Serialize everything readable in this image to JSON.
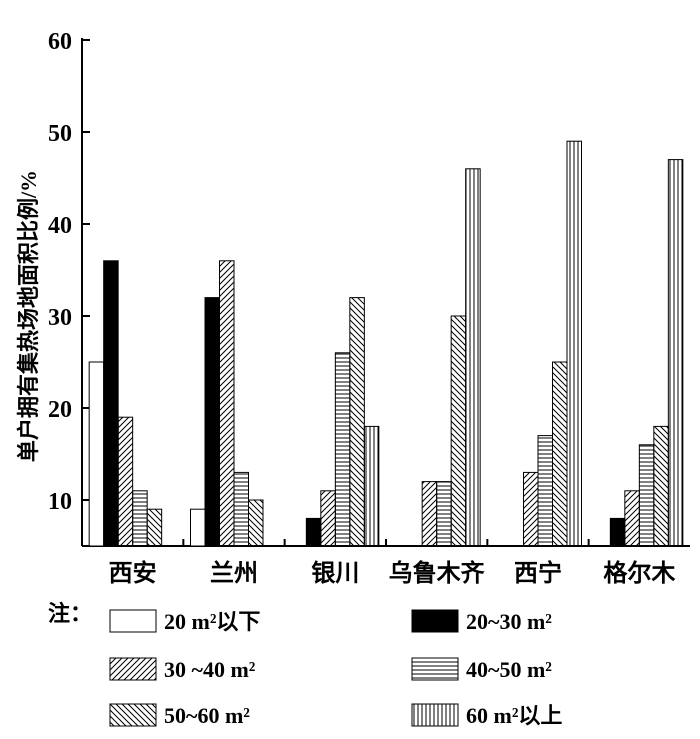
{
  "chart_data": {
    "type": "bar",
    "ylabel": "单户拥有集热场地面积比例/%",
    "ylim": [
      5,
      60
    ],
    "yticks": [
      10,
      20,
      30,
      40,
      50,
      60
    ],
    "categories": [
      "西安",
      "兰州",
      "银川",
      "乌鲁木齐",
      "西宁",
      "格尔木"
    ],
    "series": [
      {
        "name": "20 m²以下",
        "pattern": "white",
        "values": [
          25,
          9,
          null,
          null,
          null,
          null
        ]
      },
      {
        "name": "20~30 m²",
        "pattern": "black",
        "values": [
          36,
          32,
          8,
          null,
          null,
          8
        ]
      },
      {
        "name": "30 ~40 m²",
        "pattern": "diag-up",
        "values": [
          19,
          36,
          11,
          12,
          13,
          11
        ]
      },
      {
        "name": "40~50 m²",
        "pattern": "horizontal",
        "values": [
          11,
          13,
          26,
          12,
          17,
          16
        ]
      },
      {
        "name": "50~60 m²",
        "pattern": "diag-down",
        "values": [
          9,
          10,
          32,
          30,
          25,
          18
        ]
      },
      {
        "name": "60 m²以上",
        "pattern": "vertical",
        "values": [
          null,
          null,
          18,
          46,
          49,
          47
        ]
      }
    ],
    "legend_prefix": "注：",
    "legend_position": "bottom",
    "grid": false
  }
}
